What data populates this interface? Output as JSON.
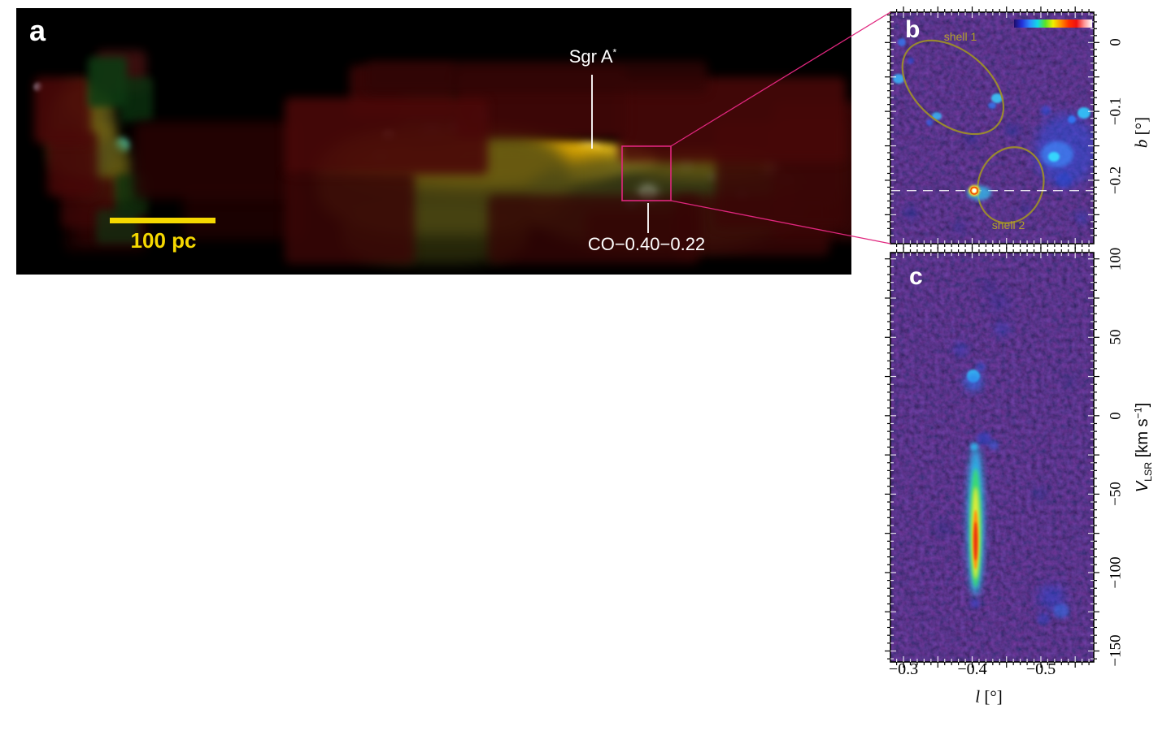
{
  "panels": {
    "a": {
      "label": "a",
      "scale_bar_label": "100 pc",
      "scale_bar_color": "#f5d800",
      "inset_color": "#e0267e",
      "sgr_a": {
        "text": "Sgr A",
        "sup": "*"
      },
      "co_label": "CO−0.40−0.22"
    },
    "b": {
      "label": "b"
    },
    "c": {
      "label": "c"
    }
  },
  "chart_data": [
    {
      "panel": "b",
      "type": "heatmap",
      "content": "Intensity map around the compact cloud CO−0.40−0.22 showing shell 1 and shell 2",
      "x": {
        "lim": [
          -0.281,
          -0.577
        ],
        "minor_step": 0.01,
        "major_step": 0.05
      },
      "y": {
        "label_parts": {
          "var": "b",
          "unit": " [°]"
        },
        "lim": [
          0.044,
          -0.292
        ],
        "ticks": [
          0,
          -0.1,
          -0.2
        ],
        "tick_labels": [
          "0",
          "−0.1",
          "−0.2"
        ],
        "minor_step": 0.01,
        "major_step": 0.05
      },
      "colorbar": {
        "position": "top-right",
        "colors": [
          "#1c0c6a",
          "#2430d8",
          "#2e8cff",
          "#10d8e8",
          "#58e428",
          "#f0f000",
          "#ff9000",
          "#ff3000",
          "#ee1010",
          "#ff9898",
          "#ffffff"
        ]
      },
      "features": {
        "shell_color": "#9c8d2b",
        "shell_label_color": "#b3a02b",
        "shells": [
          {
            "label": "shell 1",
            "l": -0.372,
            "b": -0.065,
            "rx_deg": 0.085,
            "ry_deg": 0.053,
            "angle_deg": 40
          },
          {
            "label": "shell 2",
            "l": -0.456,
            "b": -0.207,
            "rx_deg": 0.047,
            "ry_deg": 0.056,
            "angle_deg": 20
          }
        ],
        "compact_source": {
          "name": "CO−0.40−0.22",
          "l": -0.403,
          "b": -0.215
        },
        "dashed_line_b": -0.215
      }
    },
    {
      "panel": "c",
      "type": "heatmap",
      "content": "Longitude–velocity diagram along the dashed line; high-velocity-width feature at CO−0.40−0.22",
      "x": {
        "label_parts": {
          "var": "l",
          "unit": " [°]"
        },
        "lim": [
          -0.281,
          -0.577
        ],
        "ticks": [
          -0.3,
          -0.4,
          -0.5
        ],
        "tick_labels": [
          "−0.3",
          "−0.4",
          "−0.5"
        ],
        "minor_step": 0.01,
        "major_step": 0.05
      },
      "y": {
        "label_parts": {
          "var": "V",
          "sub": "LSR",
          "unit_pre": " [km s",
          "sup": "−1",
          "unit_post": "]"
        },
        "lim": [
          104,
          -157
        ],
        "ticks": [
          100,
          50,
          0,
          -50,
          -100,
          -150
        ],
        "tick_labels": [
          "100",
          "50",
          "0",
          "−50",
          "−100",
          "−150"
        ],
        "minor_step": 5,
        "major_step": 25
      },
      "features": {
        "high_velocity_feature": {
          "l": -0.405,
          "v_from": -20,
          "v_to": -115,
          "v_peak": -80
        }
      }
    }
  ]
}
